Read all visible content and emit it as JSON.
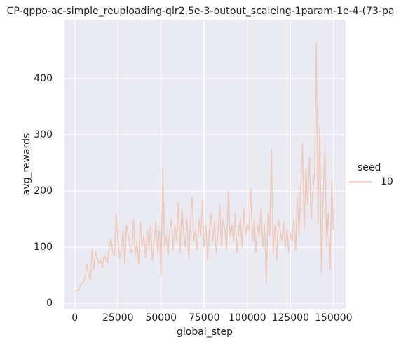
{
  "chart_data": {
    "type": "line",
    "title": "CP-qppo-ac-simple_reuploading-qlr2.5e-3-output_scaleing-1param-1e-4-(73-pa",
    "xlabel": "global_step",
    "ylabel": "avg_rewards",
    "legend_title": "seed",
    "legend": "right",
    "grid": true,
    "xlim": [
      -6000,
      157000
    ],
    "ylim": [
      -10,
      505
    ],
    "xticks": [
      0,
      25000,
      50000,
      75000,
      100000,
      125000,
      150000
    ],
    "yticks": [
      0,
      100,
      200,
      300,
      400
    ],
    "x": [
      0,
      1000,
      2000,
      3000,
      4000,
      5000,
      6000,
      7000,
      8000,
      9000,
      10000,
      11000,
      12000,
      13000,
      14000,
      15000,
      16000,
      17000,
      18000,
      19000,
      20000,
      21000,
      22000,
      23000,
      24000,
      25000,
      26000,
      27000,
      28000,
      29000,
      30000,
      31000,
      32000,
      33000,
      34000,
      35000,
      36000,
      37000,
      38000,
      39000,
      40000,
      41000,
      42000,
      43000,
      44000,
      45000,
      46000,
      47000,
      48000,
      49000,
      50000,
      51000,
      52000,
      53000,
      54000,
      55000,
      56000,
      57000,
      58000,
      59000,
      60000,
      61000,
      62000,
      63000,
      64000,
      65000,
      66000,
      67000,
      68000,
      69000,
      70000,
      71000,
      72000,
      73000,
      74000,
      75000,
      76000,
      77000,
      78000,
      79000,
      80000,
      81000,
      82000,
      83000,
      84000,
      85000,
      86000,
      87000,
      88000,
      89000,
      90000,
      91000,
      92000,
      93000,
      94000,
      95000,
      96000,
      97000,
      98000,
      99000,
      100000,
      101000,
      102000,
      103000,
      104000,
      105000,
      106000,
      107000,
      108000,
      109000,
      110000,
      111000,
      112000,
      113000,
      114000,
      115000,
      116000,
      117000,
      118000,
      119000,
      120000,
      121000,
      122000,
      123000,
      124000,
      125000,
      126000,
      127000,
      128000,
      129000,
      130000,
      131000,
      132000,
      133000,
      134000,
      135000,
      136000,
      137000,
      138000,
      139000,
      140000,
      141000,
      142000,
      143000,
      144000,
      145000,
      146000,
      147000,
      148000,
      149000,
      150000
    ],
    "series": [
      {
        "name": "10",
        "color": "#efcabc",
        "values": [
          22,
          21,
          24,
          30,
          36,
          38,
          45,
          70,
          50,
          40,
          95,
          60,
          92,
          80,
          70,
          75,
          62,
          85,
          78,
          72,
          100,
          115,
          90,
          85,
          160,
          110,
          80,
          95,
          130,
          70,
          140,
          120,
          100,
          90,
          150,
          85,
          110,
          70,
          145,
          100,
          120,
          80,
          130,
          95,
          140,
          75,
          110,
          145,
          90,
          130,
          50,
          240,
          100,
          120,
          85,
          130,
          150,
          95,
          140,
          110,
          180,
          90,
          170,
          130,
          100,
          150,
          80,
          140,
          190,
          110,
          130,
          95,
          150,
          120,
          185,
          100,
          140,
          75,
          130,
          160,
          110,
          145,
          90,
          125,
          175,
          100,
          150,
          130,
          95,
          200,
          120,
          140,
          110,
          160,
          90,
          130,
          150,
          100,
          170,
          120,
          140,
          130,
          205,
          110,
          150,
          90,
          140,
          120,
          170,
          100,
          140,
          35,
          160,
          120,
          275,
          90,
          140,
          75,
          150,
          130,
          110,
          145,
          100,
          130,
          90,
          125,
          110,
          150,
          95,
          190,
          120,
          210,
          285,
          130,
          240,
          175,
          260,
          150,
          200,
          230,
          465,
          140,
          315,
          55,
          190,
          280,
          100,
          160,
          60,
          220,
          130
        ]
      }
    ]
  }
}
